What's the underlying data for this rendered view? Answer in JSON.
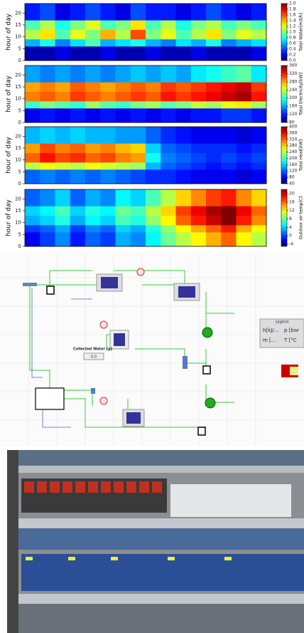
{
  "chart_data": [
    {
      "type": "heatmap",
      "ylabel": "hour of day",
      "ylim": [
        0,
        24
      ],
      "yticks": [
        0,
        5,
        10,
        15,
        20
      ],
      "hour_bins": [
        0,
        6,
        9,
        13,
        17,
        24
      ],
      "values": [
        [
          0.1,
          0.1,
          0.2,
          0.1,
          0.1,
          0.2,
          0.1,
          0.1,
          0.2,
          0.1,
          0.1,
          0.2,
          0.1,
          0.1,
          0.1,
          0.2
        ],
        [
          0.6,
          0.8,
          0.5,
          0.7,
          0.9,
          0.6,
          0.7,
          0.8,
          0.6,
          0.5,
          0.7,
          0.6,
          0.8,
          0.5,
          0.6,
          0.7
        ],
        [
          1.1,
          1.3,
          0.9,
          1.2,
          1.0,
          1.4,
          1.1,
          1.6,
          1.0,
          1.2,
          0.9,
          1.1,
          1.3,
          1.0,
          1.2,
          1.1
        ],
        [
          0.9,
          1.1,
          0.8,
          1.0,
          1.2,
          0.9,
          1.0,
          1.3,
          0.9,
          1.1,
          0.8,
          1.0,
          1.1,
          0.9,
          1.0,
          0.9
        ],
        [
          0.3,
          0.4,
          0.2,
          0.3,
          0.4,
          0.3,
          0.2,
          0.4,
          0.3,
          0.3,
          0.2,
          0.3,
          0.4,
          0.3,
          0.2,
          0.3
        ]
      ],
      "colorbar_label": "Total Water[m3/h]",
      "clim": [
        0,
        2
      ],
      "cticks": [
        {
          "value": 0,
          "label": "0.0"
        },
        {
          "value": 0.2,
          "label": "0.2"
        },
        {
          "value": 0.4,
          "label": "0.4"
        },
        {
          "value": 0.6,
          "label": "0.6"
        },
        {
          "value": 0.8,
          "label": "0.8"
        },
        {
          "value": 1,
          "label": "1.0"
        },
        {
          "value": 1.2,
          "label": "1.2"
        },
        {
          "value": 1.4,
          "label": "1.4"
        },
        {
          "value": 1.6,
          "label": "1.6"
        },
        {
          "value": 1.8,
          "label": "1.8"
        },
        {
          "value": 2,
          "label": "2.0"
        }
      ]
    },
    {
      "type": "heatmap",
      "ylabel": "hour of day",
      "ylim": [
        0,
        24
      ],
      "yticks": [
        0,
        5,
        10,
        15,
        20
      ],
      "hour_bins": [
        0,
        6,
        9,
        13,
        17,
        24
      ],
      "values": [
        [
          110,
          120,
          110,
          120,
          110,
          120,
          110,
          120,
          110,
          120,
          110,
          120,
          120,
          130,
          130,
          120
        ],
        [
          200,
          220,
          210,
          200,
          230,
          210,
          200,
          220,
          230,
          210,
          220,
          240,
          230,
          250,
          260,
          230
        ],
        [
          290,
          300,
          290,
          310,
          300,
          290,
          300,
          310,
          300,
          320,
          310,
          320,
          330,
          340,
          350,
          320
        ],
        [
          280,
          290,
          280,
          300,
          290,
          280,
          290,
          300,
          290,
          310,
          300,
          310,
          320,
          330,
          340,
          310
        ],
        [
          160,
          150,
          160,
          150,
          160,
          150,
          160,
          170,
          160,
          170,
          160,
          180,
          190,
          200,
          210,
          180
        ]
      ],
      "colorbar_label": "Total Electricity[kW]",
      "clim": [
        80,
        360
      ],
      "cticks": [
        80,
        120,
        160,
        200,
        240,
        280,
        320,
        360
      ]
    },
    {
      "type": "heatmap",
      "ylabel": "hour of day",
      "ylim": [
        0,
        24
      ],
      "yticks": [
        0,
        5,
        10,
        15,
        20
      ],
      "hour_bins": [
        0,
        6,
        9,
        13,
        17,
        24
      ],
      "values": [
        [
          120,
          130,
          120,
          130,
          120,
          130,
          120,
          110,
          100,
          100,
          90,
          80,
          80,
          80,
          70,
          80
        ],
        [
          240,
          260,
          250,
          240,
          260,
          250,
          240,
          230,
          150,
          120,
          110,
          100,
          90,
          100,
          90,
          100
        ],
        [
          320,
          350,
          330,
          340,
          320,
          330,
          310,
          300,
          180,
          130,
          120,
          110,
          100,
          110,
          100,
          110
        ],
        [
          300,
          330,
          310,
          320,
          300,
          310,
          290,
          280,
          160,
          120,
          110,
          100,
          100,
          100,
          90,
          100
        ],
        [
          150,
          160,
          150,
          160,
          150,
          150,
          140,
          140,
          120,
          100,
          90,
          80,
          80,
          80,
          70,
          80
        ]
      ],
      "colorbar_label": "Total Heat[kW]",
      "clim": [
        40,
        400
      ],
      "cticks": [
        40,
        80,
        120,
        160,
        200,
        240,
        280,
        320,
        360,
        400
      ]
    },
    {
      "type": "heatmap",
      "ylabel": "hour of day",
      "ylim": [
        0,
        24
      ],
      "yticks": [
        0,
        5,
        10,
        15,
        20
      ],
      "hour_bins": [
        0,
        6,
        9,
        13,
        17,
        24
      ],
      "values": [
        [
          -2,
          0,
          2,
          -1,
          1,
          0,
          3,
          2,
          5,
          8,
          10,
          12,
          14,
          16,
          12,
          10
        ],
        [
          0,
          1,
          3,
          0,
          2,
          1,
          4,
          3,
          6,
          9,
          12,
          14,
          16,
          18,
          14,
          12
        ],
        [
          3,
          4,
          6,
          3,
          5,
          4,
          7,
          6,
          9,
          12,
          16,
          18,
          20,
          22,
          18,
          15
        ],
        [
          4,
          5,
          7,
          4,
          6,
          5,
          8,
          7,
          10,
          13,
          17,
          19,
          21,
          22,
          19,
          16
        ],
        [
          1,
          2,
          4,
          1,
          3,
          2,
          5,
          4,
          7,
          10,
          13,
          15,
          17,
          18,
          15,
          13
        ]
      ],
      "colorbar_label": "Outdoor air temp[C]",
      "clim": [
        -5,
        22
      ],
      "cticks": [
        -4,
        0,
        4,
        8,
        12,
        16,
        20
      ]
    }
  ],
  "diagram": {
    "collected_water_label": "Collected Water [g]",
    "collected_water_value": "0.0",
    "legend": {
      "title": "Legend",
      "cells": [
        "h[kJ/...",
        "p [bar",
        "m [...",
        "T [°C"
      ]
    }
  }
}
